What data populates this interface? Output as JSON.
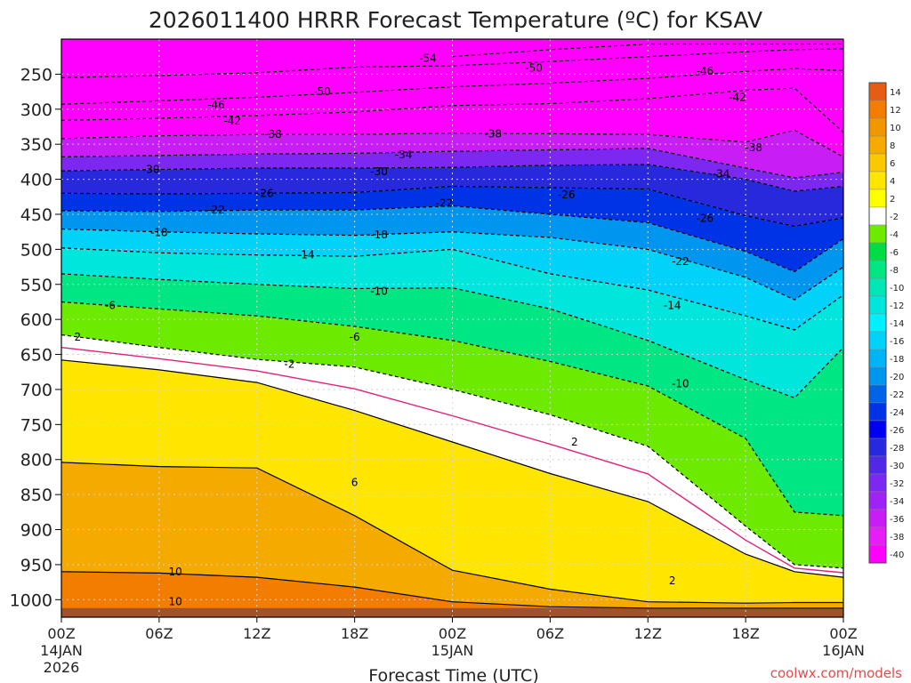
{
  "chart_data": {
    "type": "contour",
    "title": "2026011400 HRRR Forecast Temperature (ºC) for KSAV",
    "xlabel": "Forecast Time (UTC)",
    "ylabel": "",
    "credit": "coolwx.com/models",
    "x_range_hours": [
      0,
      48
    ],
    "y_range_hPa": [
      200,
      1025
    ],
    "x_ticks": [
      {
        "hour": 0,
        "label": "00Z",
        "label2": "14JAN",
        "label3": "2026"
      },
      {
        "hour": 6,
        "label": "06Z",
        "label2": "",
        "label3": ""
      },
      {
        "hour": 12,
        "label": "12Z",
        "label2": "",
        "label3": ""
      },
      {
        "hour": 18,
        "label": "18Z",
        "label2": "",
        "label3": ""
      },
      {
        "hour": 24,
        "label": "00Z",
        "label2": "15JAN",
        "label3": ""
      },
      {
        "hour": 30,
        "label": "06Z",
        "label2": "",
        "label3": ""
      },
      {
        "hour": 36,
        "label": "12Z",
        "label2": "",
        "label3": ""
      },
      {
        "hour": 42,
        "label": "18Z",
        "label2": "",
        "label3": ""
      },
      {
        "hour": 48,
        "label": "00Z",
        "label2": "16JAN",
        "label3": ""
      }
    ],
    "y_ticks": [
      "250",
      "300",
      "350",
      "400",
      "450",
      "500",
      "550",
      "600",
      "650",
      "700",
      "750",
      "800",
      "850",
      "900",
      "950",
      "1000"
    ],
    "hours": [
      0,
      6,
      12,
      18,
      24,
      30,
      36,
      42,
      45,
      48
    ],
    "isotherm_pressure_hPa": {
      "-54": [
        null,
        null,
        null,
        null,
        225,
        215,
        207,
        207,
        207,
        207
      ],
      "-50": [
        255,
        252,
        248,
        240,
        238,
        232,
        225,
        218,
        215,
        214
      ],
      "-46": [
        293,
        288,
        283,
        276,
        268,
        263,
        256,
        246,
        242,
        245
      ],
      "-42": [
        316,
        313,
        309,
        304,
        295,
        292,
        285,
        273,
        270,
        333
      ],
      "-38": [
        342,
        338,
        336,
        336,
        334,
        335,
        336,
        347,
        330,
        368
      ],
      "-34": [
        368,
        366,
        364,
        363,
        360,
        358,
        356,
        384,
        398,
        390
      ],
      "-30": [
        388,
        386,
        384,
        384,
        383,
        380,
        379,
        400,
        417,
        410
      ],
      "-26": [
        420,
        421,
        420,
        419,
        410,
        412,
        414,
        452,
        467,
        455
      ],
      "-22": [
        445,
        446,
        444,
        444,
        438,
        450,
        462,
        503,
        532,
        485
      ],
      "-18": [
        471,
        475,
        478,
        480,
        475,
        483,
        500,
        540,
        572,
        525
      ],
      "-14": [
        498,
        505,
        508,
        510,
        500,
        535,
        558,
        595,
        615,
        565
      ],
      "-10": [
        535,
        543,
        550,
        556,
        555,
        585,
        630,
        686,
        712,
        640
      ],
      "-6": [
        575,
        585,
        595,
        610,
        630,
        660,
        695,
        770,
        875,
        880
      ],
      "-2": [
        622,
        640,
        657,
        668,
        700,
        736,
        781,
        895,
        950,
        955
      ],
      "2": [
        658,
        672,
        690,
        730,
        775,
        820,
        860,
        935,
        960,
        968
      ],
      "6": [
        804,
        810,
        812,
        880,
        958,
        985,
        1003,
        1005,
        1004,
        1004
      ],
      "10": [
        960,
        962,
        968,
        982,
        1003,
        1010,
        1012,
        1012,
        1012,
        1012
      ]
    },
    "contour_labels": [
      {
        "value": "-54",
        "hour": 22.5,
        "p": 227
      },
      {
        "value": "-50",
        "hour": 16,
        "p": 275
      },
      {
        "value": "-50",
        "hour": 29,
        "p": 241
      },
      {
        "value": "-46",
        "hour": 9.5,
        "p": 294
      },
      {
        "value": "-46",
        "hour": 39.5,
        "p": 246
      },
      {
        "value": "-42",
        "hour": 10.5,
        "p": 317
      },
      {
        "value": "-42",
        "hour": 41.5,
        "p": 283
      },
      {
        "value": "-38",
        "hour": 13,
        "p": 336
      },
      {
        "value": "-38",
        "hour": 26.5,
        "p": 335
      },
      {
        "value": "-38",
        "hour": 42.5,
        "p": 355
      },
      {
        "value": "-34",
        "hour": 21,
        "p": 365
      },
      {
        "value": "-34",
        "hour": 40.5,
        "p": 392
      },
      {
        "value": "-30",
        "hour": 5.5,
        "p": 386
      },
      {
        "value": "-30",
        "hour": 19.5,
        "p": 389
      },
      {
        "value": "-26",
        "hour": 12.5,
        "p": 420
      },
      {
        "value": "-26",
        "hour": 31,
        "p": 422
      },
      {
        "value": "-26",
        "hour": 39.5,
        "p": 456
      },
      {
        "value": "-22",
        "hour": 9.5,
        "p": 444
      },
      {
        "value": "-22",
        "hour": 23.5,
        "p": 434
      },
      {
        "value": "-22",
        "hour": 38,
        "p": 517
      },
      {
        "value": "-18",
        "hour": 6,
        "p": 476
      },
      {
        "value": "-18",
        "hour": 19.5,
        "p": 479
      },
      {
        "value": "-14",
        "hour": 15,
        "p": 508
      },
      {
        "value": "-14",
        "hour": 37.5,
        "p": 580
      },
      {
        "value": "-10",
        "hour": 19.5,
        "p": 560
      },
      {
        "value": "-10",
        "hour": 38,
        "p": 692
      },
      {
        "value": "-6",
        "hour": 3,
        "p": 580
      },
      {
        "value": "-6",
        "hour": 18,
        "p": 625
      },
      {
        "value": "-2",
        "hour": 14,
        "p": 664
      },
      {
        "value": "2",
        "hour": 1,
        "p": 625
      },
      {
        "value": "2",
        "hour": 31.5,
        "p": 775
      },
      {
        "value": "2",
        "hour": 37.5,
        "p": 973
      },
      {
        "value": "6",
        "hour": 18,
        "p": 833
      },
      {
        "value": "10",
        "hour": 7,
        "p": 960
      },
      {
        "value": "10",
        "hour": 7,
        "p": 1003
      }
    ],
    "colorbar": {
      "labels": [
        "14",
        "12",
        "10",
        "8",
        "6",
        "4",
        "2",
        "-2",
        "-4",
        "-6",
        "-8",
        "-10",
        "-12",
        "-14",
        "-16",
        "-18",
        "-20",
        "-22",
        "-24",
        "-26",
        "-28",
        "-30",
        "-32",
        "-34",
        "-36",
        "-38",
        "-40"
      ],
      "colors": [
        "#e65c14",
        "#f27d00",
        "#f29600",
        "#f5aa00",
        "#fac800",
        "#ffe600",
        "#ffff00",
        "#ffffff",
        "#6cea00",
        "#00dc46",
        "#00e682",
        "#00e6b4",
        "#00e6dc",
        "#00f0ff",
        "#00d2fa",
        "#00b4f5",
        "#0096f0",
        "#0064e6",
        "#0032e6",
        "#0000f0",
        "#2828dc",
        "#5028e6",
        "#7c28f0",
        "#a023f5",
        "#c81ef5",
        "#e61ef5",
        "#ff00ff"
      ]
    },
    "colors": {
      "ground": "#a0522d",
      "freezing_line": "#e0207a",
      "contour": "#000000"
    }
  }
}
